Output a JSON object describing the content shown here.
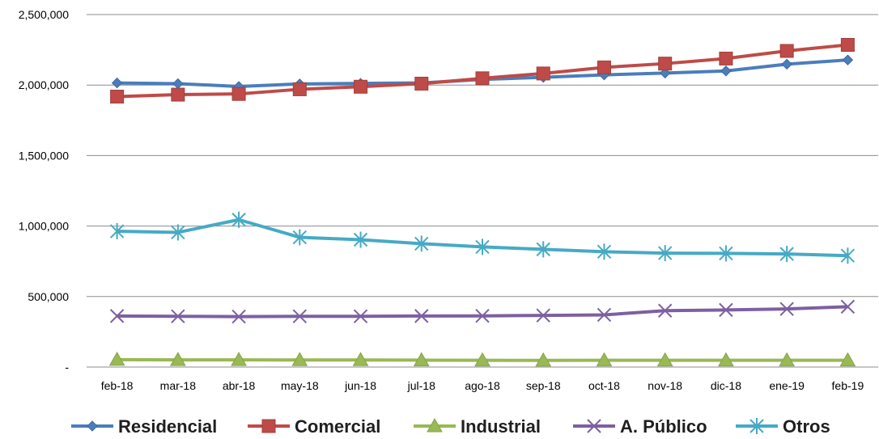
{
  "chart_data": {
    "type": "line",
    "title": "",
    "xlabel": "",
    "ylabel": "",
    "categories": [
      "feb-18",
      "mar-18",
      "abr-18",
      "may-18",
      "jun-18",
      "jul-18",
      "ago-18",
      "sep-18",
      "oct-18",
      "nov-18",
      "dic-18",
      "ene-19",
      "feb-19"
    ],
    "ylim": [
      0,
      2500000
    ],
    "y_ticks": [
      0,
      500000,
      1000000,
      1500000,
      2000000,
      2500000
    ],
    "y_tick_labels": [
      "-",
      "500,000",
      "1,000,000",
      "1,500,000",
      "2,000,000",
      "2,500,000"
    ],
    "grid": "horizontal",
    "legend_position": "bottom",
    "series": [
      {
        "name": "Residencial",
        "color": "#4a7ebb",
        "marker": "diamond",
        "values": [
          2015000,
          2010000,
          1990000,
          2008000,
          2012000,
          2015000,
          2040000,
          2055000,
          2072000,
          2085000,
          2100000,
          2148000,
          2178000
        ]
      },
      {
        "name": "Comercial",
        "color": "#be4b48",
        "marker": "square",
        "values": [
          1918000,
          1932000,
          1937000,
          1970000,
          1988000,
          2010000,
          2048000,
          2082000,
          2125000,
          2152000,
          2188000,
          2242000,
          2285000
        ]
      },
      {
        "name": "Industrial",
        "color": "#98b954",
        "marker": "triangle",
        "values": [
          52000,
          51000,
          51000,
          50000,
          50000,
          49000,
          48000,
          47000,
          48000,
          48000,
          48000,
          48000,
          48000
        ]
      },
      {
        "name": "A. Público",
        "color": "#7d60a0",
        "marker": "x",
        "values": [
          362000,
          360000,
          358000,
          360000,
          360000,
          362000,
          363000,
          366000,
          370000,
          400000,
          405000,
          412000,
          428000
        ]
      },
      {
        "name": "Otros",
        "color": "#46aac5",
        "marker": "asterisk",
        "values": [
          963000,
          955000,
          1045000,
          920000,
          903000,
          875000,
          852000,
          835000,
          818000,
          808000,
          806000,
          802000,
          790000
        ]
      }
    ]
  }
}
